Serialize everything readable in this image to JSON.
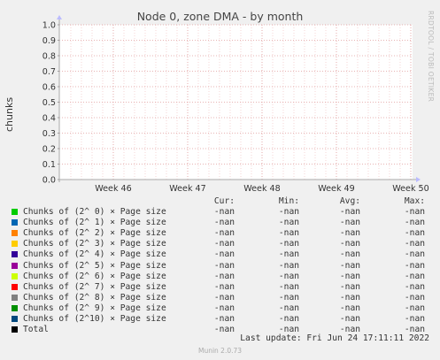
{
  "title": "Node 0, zone DMA - by month",
  "watermark": "RRDTOOL / TOBI OETIKER",
  "chart_data": {
    "type": "line",
    "title": "Node 0, zone DMA - by month",
    "ylabel": "chunks",
    "ylim": [
      0.0,
      1.0
    ],
    "y_ticks": [
      "0.0",
      "0.1",
      "0.2",
      "0.3",
      "0.4",
      "0.5",
      "0.6",
      "0.7",
      "0.8",
      "0.9",
      "1.0"
    ],
    "x_ticks": [
      "Week 46",
      "Week 47",
      "Week 48",
      "Week 49",
      "Week 50"
    ],
    "grid": true,
    "series": [
      {
        "name": "Chunks of (2^ 0) × Page size",
        "color": "#00cc00",
        "values": []
      },
      {
        "name": "Chunks of (2^ 1) × Page size",
        "color": "#0066b3",
        "values": []
      },
      {
        "name": "Chunks of (2^ 2) × Page size",
        "color": "#ff8000",
        "values": []
      },
      {
        "name": "Chunks of (2^ 3) × Page size",
        "color": "#ffcc00",
        "values": []
      },
      {
        "name": "Chunks of (2^ 4) × Page size",
        "color": "#330099",
        "values": []
      },
      {
        "name": "Chunks of (2^ 5) × Page size",
        "color": "#990099",
        "values": []
      },
      {
        "name": "Chunks of (2^ 6) × Page size",
        "color": "#ccff00",
        "values": []
      },
      {
        "name": "Chunks of (2^ 7) × Page size",
        "color": "#ff0000",
        "values": []
      },
      {
        "name": "Chunks of (2^ 8) × Page size",
        "color": "#808080",
        "values": []
      },
      {
        "name": "Chunks of (2^ 9) × Page size",
        "color": "#008f00",
        "values": []
      },
      {
        "name": "Chunks of (2^10) × Page size",
        "color": "#00487d",
        "values": []
      },
      {
        "name": "Total",
        "color": "#000000",
        "values": []
      }
    ]
  },
  "legend": {
    "headers": [
      "Cur:",
      "Min:",
      "Avg:",
      "Max:"
    ],
    "rows": [
      {
        "label": "Chunks of (2^ 0) × Page size",
        "color": "#00cc00",
        "cur": "-nan",
        "min": "-nan",
        "avg": "-nan",
        "max": "-nan"
      },
      {
        "label": "Chunks of (2^ 1) × Page size",
        "color": "#0066b3",
        "cur": "-nan",
        "min": "-nan",
        "avg": "-nan",
        "max": "-nan"
      },
      {
        "label": "Chunks of (2^ 2) × Page size",
        "color": "#ff8000",
        "cur": "-nan",
        "min": "-nan",
        "avg": "-nan",
        "max": "-nan"
      },
      {
        "label": "Chunks of (2^ 3) × Page size",
        "color": "#ffcc00",
        "cur": "-nan",
        "min": "-nan",
        "avg": "-nan",
        "max": "-nan"
      },
      {
        "label": "Chunks of (2^ 4) × Page size",
        "color": "#330099",
        "cur": "-nan",
        "min": "-nan",
        "avg": "-nan",
        "max": "-nan"
      },
      {
        "label": "Chunks of (2^ 5) × Page size",
        "color": "#990099",
        "cur": "-nan",
        "min": "-nan",
        "avg": "-nan",
        "max": "-nan"
      },
      {
        "label": "Chunks of (2^ 6) × Page size",
        "color": "#ccff00",
        "cur": "-nan",
        "min": "-nan",
        "avg": "-nan",
        "max": "-nan"
      },
      {
        "label": "Chunks of (2^ 7) × Page size",
        "color": "#ff0000",
        "cur": "-nan",
        "min": "-nan",
        "avg": "-nan",
        "max": "-nan"
      },
      {
        "label": "Chunks of (2^ 8) × Page size",
        "color": "#808080",
        "cur": "-nan",
        "min": "-nan",
        "avg": "-nan",
        "max": "-nan"
      },
      {
        "label": "Chunks of (2^ 9) × Page size",
        "color": "#008f00",
        "cur": "-nan",
        "min": "-nan",
        "avg": "-nan",
        "max": "-nan"
      },
      {
        "label": "Chunks of (2^10) × Page size",
        "color": "#00487d",
        "cur": "-nan",
        "min": "-nan",
        "avg": "-nan",
        "max": "-nan"
      },
      {
        "label": "Total",
        "color": "#000000",
        "cur": "-nan",
        "min": "-nan",
        "avg": "-nan",
        "max": "-nan"
      }
    ]
  },
  "last_update": "Last update: Fri Jun 24 17:11:11 2022",
  "footer": "Munin 2.0.73"
}
